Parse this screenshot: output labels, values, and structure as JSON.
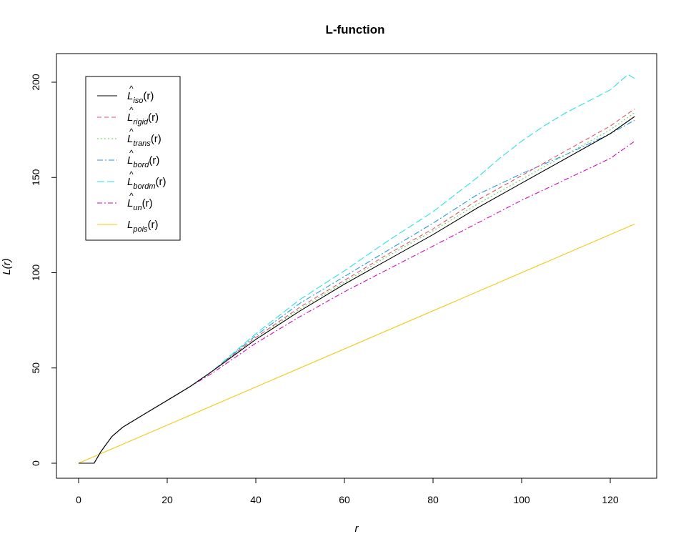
{
  "chart_data": {
    "type": "line",
    "title": "L-function",
    "xlabel": "r",
    "ylabel": "L(r)",
    "xlim": [
      0,
      126
    ],
    "ylim": [
      -8,
      206
    ],
    "xticks": [
      "0",
      "20",
      "40",
      "60",
      "80",
      "100",
      "120"
    ],
    "yticks": [
      "0",
      "50",
      "100",
      "150",
      "200"
    ],
    "grid": false,
    "legend_position": "top-left",
    "series": [
      {
        "name_base": "L",
        "name_sub": "iso",
        "hat": true,
        "name_suffix": "(r)",
        "color": "#000000",
        "dash": "",
        "x": [
          0,
          3.5,
          5,
          7.5,
          10,
          15,
          20,
          25,
          30,
          40,
          50,
          60,
          70,
          80,
          90,
          100,
          110,
          120,
          125.5
        ],
        "y": [
          0,
          0,
          6,
          14,
          19,
          26,
          33,
          40,
          48,
          65,
          80,
          94,
          107,
          120,
          134,
          147,
          160,
          173,
          182
        ]
      },
      {
        "name_base": "L",
        "name_sub": "rigid",
        "hat": true,
        "name_suffix": "(r)",
        "color": "#DF536B",
        "dash": "6,4",
        "x": [
          0,
          3.5,
          5,
          7.5,
          10,
          15,
          20,
          25,
          30,
          40,
          50,
          60,
          70,
          80,
          90,
          100,
          110,
          120,
          125.5
        ],
        "y": [
          0,
          0,
          6,
          14,
          19,
          26,
          33,
          40,
          48,
          66,
          82,
          96,
          110,
          123,
          138,
          151,
          164,
          177,
          186
        ]
      },
      {
        "name_base": "L",
        "name_sub": "trans",
        "hat": true,
        "name_suffix": "(r)",
        "color": "#61D04F",
        "dash": "2,3",
        "x": [
          0,
          3.5,
          5,
          7.5,
          10,
          15,
          20,
          25,
          30,
          40,
          50,
          60,
          70,
          80,
          90,
          100,
          110,
          120,
          125.5
        ],
        "y": [
          0,
          0,
          6,
          14,
          19,
          26,
          33,
          40,
          48,
          66,
          81,
          95,
          109,
          122,
          136,
          149,
          162,
          175,
          184
        ]
      },
      {
        "name_base": "L",
        "name_sub": "bord",
        "hat": true,
        "name_suffix": "(r)",
        "color": "#2297E6",
        "dash": "8,3,2,3",
        "x": [
          0,
          3.5,
          5,
          7.5,
          10,
          15,
          20,
          25,
          30,
          40,
          50,
          60,
          70,
          80,
          90,
          100,
          110,
          120,
          125.5
        ],
        "y": [
          0,
          0,
          6,
          14,
          19,
          26,
          33,
          40,
          48,
          67,
          84,
          98,
          112,
          126,
          141,
          152,
          162,
          173,
          180
        ]
      },
      {
        "name_base": "L",
        "name_sub": "bordm",
        "hat": true,
        "name_suffix": "(r)",
        "color": "#28E2E5",
        "dash": "10,4",
        "x": [
          0,
          3.5,
          5,
          7.5,
          10,
          15,
          20,
          25,
          30,
          40,
          50,
          60,
          70,
          80,
          90,
          95,
          100,
          105,
          110,
          115,
          120,
          124,
          125.5
        ],
        "y": [
          0,
          0,
          6,
          14,
          19,
          26,
          33,
          40,
          48,
          68,
          86,
          101,
          117,
          132,
          150,
          160,
          169,
          177,
          184,
          190,
          196,
          204,
          202
        ]
      },
      {
        "name_base": "L",
        "name_sub": "un",
        "hat": true,
        "name_suffix": "(r)",
        "color": "#CD0BBC",
        "dash": "7,3,2,3",
        "x": [
          0,
          3.5,
          5,
          7.5,
          10,
          15,
          20,
          25,
          30,
          40,
          50,
          60,
          70,
          80,
          90,
          100,
          110,
          120,
          125.5
        ],
        "y": [
          0,
          0,
          6,
          14,
          19,
          26,
          33,
          40,
          47,
          63,
          77,
          90,
          102,
          114,
          126,
          138,
          149,
          160,
          169
        ]
      },
      {
        "name_base": "L",
        "name_sub": "pois",
        "hat": false,
        "name_suffix": "(r)",
        "color": "#F5C710",
        "dash": "",
        "x": [
          0,
          125.5
        ],
        "y": [
          0,
          125.5
        ]
      }
    ]
  }
}
